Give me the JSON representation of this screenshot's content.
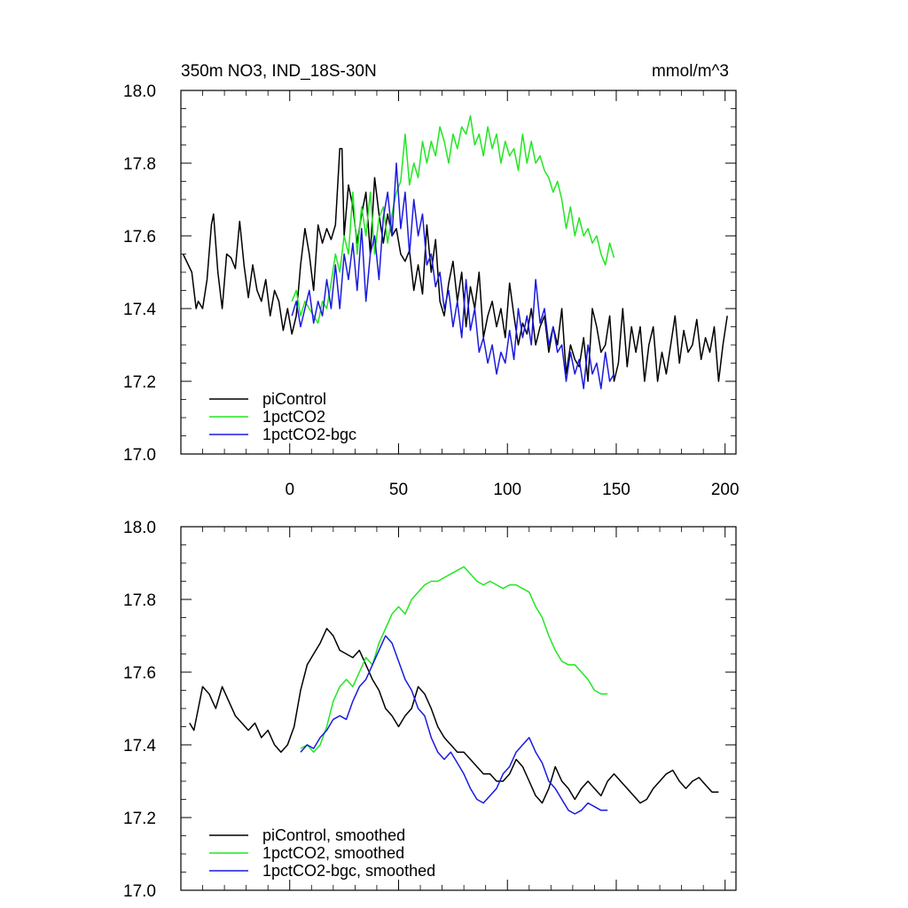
{
  "chart_data": [
    {
      "type": "line",
      "title": "350m NO3, IND_18S-30N",
      "units": "mmol/m^3",
      "xlabel": "",
      "ylabel": "",
      "xlim": [
        -50,
        205
      ],
      "ylim": [
        17.0,
        18.0
      ],
      "y_ticks": [
        "17.0",
        "17.2",
        "17.4",
        "17.6",
        "17.8",
        "18.0"
      ],
      "x_ticks": [
        "0",
        "50",
        "100",
        "150",
        "200"
      ],
      "legend_position": "bottom-left",
      "grid": false,
      "series": [
        {
          "name": "piControl",
          "color": "#000000",
          "x": [
            -49,
            -45,
            -43,
            -42,
            -40,
            -38,
            -36,
            -35,
            -33,
            -31,
            -29,
            -27,
            -25,
            -23,
            -21,
            -19,
            -17,
            -15,
            -13,
            -11,
            -9,
            -7,
            -5,
            -3,
            -1,
            1,
            3,
            5,
            7,
            9,
            11,
            13,
            15,
            17,
            19,
            21,
            23,
            24,
            25,
            27,
            29,
            31,
            33,
            35,
            37,
            39,
            41,
            43,
            45,
            47,
            49,
            51,
            53,
            55,
            57,
            59,
            61,
            63,
            65,
            67,
            69,
            71,
            73,
            75,
            77,
            79,
            81,
            83,
            85,
            87,
            89,
            91,
            93,
            95,
            97,
            99,
            101,
            103,
            105,
            107,
            109,
            111,
            113,
            115,
            117,
            119,
            121,
            123,
            125,
            127,
            129,
            131,
            133,
            135,
            137,
            139,
            141,
            143,
            145,
            147,
            149,
            151,
            153,
            155,
            157,
            159,
            161,
            163,
            165,
            167,
            169,
            171,
            173,
            175,
            177,
            179,
            181,
            183,
            185,
            187,
            189,
            191,
            193,
            195,
            197,
            199,
            201
          ],
          "y": [
            17.55,
            17.5,
            17.4,
            17.42,
            17.4,
            17.48,
            17.63,
            17.66,
            17.5,
            17.4,
            17.55,
            17.54,
            17.51,
            17.64,
            17.52,
            17.43,
            17.52,
            17.45,
            17.42,
            17.48,
            17.38,
            17.45,
            17.42,
            17.34,
            17.4,
            17.33,
            17.38,
            17.52,
            17.62,
            17.55,
            17.45,
            17.63,
            17.58,
            17.62,
            17.59,
            17.63,
            17.84,
            17.84,
            17.6,
            17.74,
            17.68,
            17.58,
            17.66,
            17.72,
            17.55,
            17.76,
            17.66,
            17.58,
            17.66,
            17.6,
            17.62,
            17.55,
            17.53,
            17.56,
            17.45,
            17.52,
            17.44,
            17.63,
            17.5,
            17.59,
            17.42,
            17.38,
            17.47,
            17.53,
            17.42,
            17.5,
            17.35,
            17.46,
            17.4,
            17.5,
            17.32,
            17.38,
            17.42,
            17.35,
            17.4,
            17.32,
            17.47,
            17.38,
            17.3,
            17.36,
            17.33,
            17.4,
            17.3,
            17.35,
            17.38,
            17.28,
            17.35,
            17.3,
            17.4,
            17.22,
            17.3,
            17.26,
            17.24,
            17.32,
            17.2,
            17.4,
            17.35,
            17.28,
            17.3,
            17.38,
            17.2,
            17.25,
            17.4,
            17.24,
            17.35,
            17.28,
            17.35,
            17.2,
            17.3,
            17.35,
            17.2,
            17.28,
            17.22,
            17.3,
            17.38,
            17.25,
            17.34,
            17.28,
            17.3,
            17.37,
            17.26,
            17.32,
            17.28,
            17.35,
            17.2,
            17.3,
            17.38
          ]
        },
        {
          "name": "1pctCO2",
          "color": "#22e622",
          "x": [
            1,
            3,
            5,
            7,
            9,
            11,
            13,
            15,
            17,
            19,
            21,
            23,
            25,
            27,
            29,
            31,
            33,
            35,
            37,
            39,
            41,
            43,
            45,
            47,
            49,
            51,
            53,
            55,
            57,
            59,
            61,
            63,
            65,
            67,
            69,
            71,
            73,
            75,
            77,
            79,
            81,
            83,
            85,
            87,
            89,
            91,
            93,
            95,
            97,
            99,
            101,
            103,
            105,
            107,
            109,
            111,
            113,
            115,
            117,
            119,
            121,
            123,
            125,
            127,
            129,
            131,
            133,
            135,
            137,
            139,
            141,
            143,
            145,
            147,
            149
          ],
          "y": [
            17.42,
            17.45,
            17.38,
            17.42,
            17.4,
            17.38,
            17.36,
            17.42,
            17.4,
            17.47,
            17.55,
            17.5,
            17.6,
            17.55,
            17.72,
            17.55,
            17.68,
            17.6,
            17.72,
            17.55,
            17.65,
            17.68,
            17.58,
            17.66,
            17.72,
            17.75,
            17.88,
            17.74,
            17.8,
            17.76,
            17.86,
            17.8,
            17.86,
            17.82,
            17.9,
            17.86,
            17.8,
            17.88,
            17.84,
            17.9,
            17.88,
            17.93,
            17.85,
            17.88,
            17.82,
            17.9,
            17.84,
            17.88,
            17.8,
            17.86,
            17.82,
            17.84,
            17.78,
            17.88,
            17.8,
            17.86,
            17.8,
            17.82,
            17.78,
            17.76,
            17.72,
            17.75,
            17.7,
            17.62,
            17.68,
            17.6,
            17.65,
            17.6,
            17.62,
            17.58,
            17.6,
            17.55,
            17.52,
            17.58,
            17.54
          ]
        },
        {
          "name": "1pctCO2-bgc",
          "color": "#1a1ae0",
          "x": [
            1,
            3,
            5,
            7,
            9,
            11,
            13,
            15,
            17,
            19,
            21,
            23,
            25,
            27,
            29,
            31,
            33,
            35,
            37,
            39,
            41,
            43,
            45,
            47,
            49,
            51,
            53,
            55,
            57,
            59,
            61,
            63,
            65,
            67,
            69,
            71,
            73,
            75,
            77,
            79,
            81,
            83,
            85,
            87,
            89,
            91,
            93,
            95,
            97,
            99,
            101,
            103,
            105,
            107,
            109,
            111,
            113,
            115,
            117,
            119,
            121,
            123,
            125,
            127,
            129,
            131,
            133,
            135,
            137,
            139,
            141,
            143,
            145,
            147,
            149
          ],
          "y": [
            17.38,
            17.42,
            17.35,
            17.4,
            17.45,
            17.36,
            17.42,
            17.38,
            17.48,
            17.4,
            17.52,
            17.4,
            17.55,
            17.48,
            17.58,
            17.45,
            17.62,
            17.42,
            17.55,
            17.6,
            17.48,
            17.65,
            17.72,
            17.6,
            17.8,
            17.62,
            17.72,
            17.55,
            17.7,
            17.6,
            17.66,
            17.52,
            17.55,
            17.46,
            17.5,
            17.4,
            17.45,
            17.35,
            17.42,
            17.32,
            17.48,
            17.34,
            17.4,
            17.28,
            17.32,
            17.25,
            17.3,
            17.22,
            17.28,
            17.25,
            17.34,
            17.26,
            17.4,
            17.32,
            17.38,
            17.3,
            17.48,
            17.36,
            17.4,
            17.3,
            17.35,
            17.28,
            17.3,
            17.2,
            17.28,
            17.22,
            17.26,
            17.18,
            17.3,
            17.22,
            17.25,
            17.18,
            17.28,
            17.2,
            17.22
          ]
        }
      ]
    },
    {
      "type": "line",
      "title": "",
      "xlabel": "",
      "ylabel": "",
      "xlim": [
        -50,
        205
      ],
      "ylim": [
        17.0,
        18.0
      ],
      "y_ticks": [
        "17.0",
        "17.2",
        "17.4",
        "17.6",
        "17.8",
        "18.0"
      ],
      "x_ticks": [],
      "legend_position": "bottom-left",
      "grid": false,
      "series": [
        {
          "name": "piControl, smoothed",
          "color": "#000000",
          "x": [
            -46,
            -44,
            -42,
            -40,
            -37,
            -34,
            -31,
            -28,
            -25,
            -22,
            -19,
            -16,
            -13,
            -10,
            -7,
            -4,
            -1,
            2,
            5,
            8,
            11,
            14,
            17,
            20,
            23,
            26,
            29,
            32,
            35,
            38,
            41,
            44,
            47,
            50,
            53,
            56,
            59,
            62,
            65,
            68,
            71,
            74,
            77,
            80,
            83,
            86,
            89,
            92,
            95,
            98,
            101,
            104,
            107,
            110,
            113,
            116,
            119,
            122,
            125,
            128,
            131,
            134,
            137,
            140,
            143,
            146,
            149,
            152,
            155,
            158,
            161,
            164,
            167,
            170,
            173,
            176,
            179,
            182,
            185,
            188,
            191,
            194,
            197
          ],
          "y": [
            17.46,
            17.44,
            17.5,
            17.56,
            17.54,
            17.5,
            17.56,
            17.52,
            17.48,
            17.46,
            17.44,
            17.46,
            17.42,
            17.44,
            17.4,
            17.38,
            17.4,
            17.45,
            17.55,
            17.62,
            17.65,
            17.68,
            17.72,
            17.7,
            17.66,
            17.65,
            17.64,
            17.66,
            17.62,
            17.58,
            17.55,
            17.5,
            17.48,
            17.45,
            17.48,
            17.5,
            17.56,
            17.54,
            17.5,
            17.45,
            17.42,
            17.4,
            17.38,
            17.38,
            17.36,
            17.34,
            17.32,
            17.32,
            17.3,
            17.3,
            17.32,
            17.36,
            17.34,
            17.3,
            17.26,
            17.24,
            17.28,
            17.34,
            17.3,
            17.28,
            17.25,
            17.28,
            17.3,
            17.28,
            17.26,
            17.3,
            17.32,
            17.3,
            17.28,
            17.26,
            17.24,
            17.25,
            17.28,
            17.3,
            17.32,
            17.33,
            17.3,
            17.28,
            17.3,
            17.31,
            17.29,
            17.27,
            17.27
          ]
        },
        {
          "name": "1pctCO2, smoothed",
          "color": "#22e622",
          "x": [
            5,
            8,
            11,
            14,
            17,
            20,
            23,
            26,
            29,
            32,
            35,
            38,
            41,
            44,
            47,
            50,
            53,
            56,
            59,
            62,
            65,
            68,
            71,
            74,
            77,
            80,
            83,
            86,
            89,
            92,
            95,
            98,
            101,
            104,
            107,
            110,
            113,
            116,
            119,
            122,
            125,
            128,
            131,
            134,
            137,
            140,
            143,
            146
          ],
          "y": [
            17.39,
            17.4,
            17.38,
            17.4,
            17.45,
            17.52,
            17.56,
            17.58,
            17.56,
            17.6,
            17.64,
            17.62,
            17.68,
            17.72,
            17.76,
            17.78,
            17.76,
            17.8,
            17.82,
            17.84,
            17.85,
            17.85,
            17.86,
            17.87,
            17.88,
            17.89,
            17.87,
            17.85,
            17.84,
            17.85,
            17.84,
            17.83,
            17.84,
            17.84,
            17.83,
            17.82,
            17.78,
            17.75,
            17.7,
            17.66,
            17.63,
            17.62,
            17.62,
            17.6,
            17.58,
            17.55,
            17.54,
            17.54
          ]
        },
        {
          "name": "1pctCO2-bgc, smoothed",
          "color": "#1a1ae0",
          "x": [
            5,
            8,
            11,
            14,
            17,
            20,
            23,
            26,
            29,
            32,
            35,
            38,
            41,
            44,
            47,
            50,
            53,
            56,
            59,
            62,
            65,
            68,
            71,
            74,
            77,
            80,
            83,
            86,
            89,
            92,
            95,
            98,
            101,
            104,
            107,
            110,
            113,
            116,
            119,
            122,
            125,
            128,
            131,
            134,
            137,
            140,
            143,
            146
          ],
          "y": [
            17.38,
            17.4,
            17.39,
            17.42,
            17.44,
            17.47,
            17.48,
            17.47,
            17.52,
            17.56,
            17.58,
            17.62,
            17.66,
            17.7,
            17.68,
            17.63,
            17.58,
            17.55,
            17.5,
            17.48,
            17.42,
            17.38,
            17.36,
            17.38,
            17.35,
            17.32,
            17.28,
            17.25,
            17.24,
            17.26,
            17.28,
            17.32,
            17.34,
            17.38,
            17.4,
            17.42,
            17.38,
            17.35,
            17.3,
            17.28,
            17.25,
            17.22,
            17.21,
            17.22,
            17.24,
            17.23,
            17.22,
            17.22
          ]
        }
      ]
    }
  ]
}
